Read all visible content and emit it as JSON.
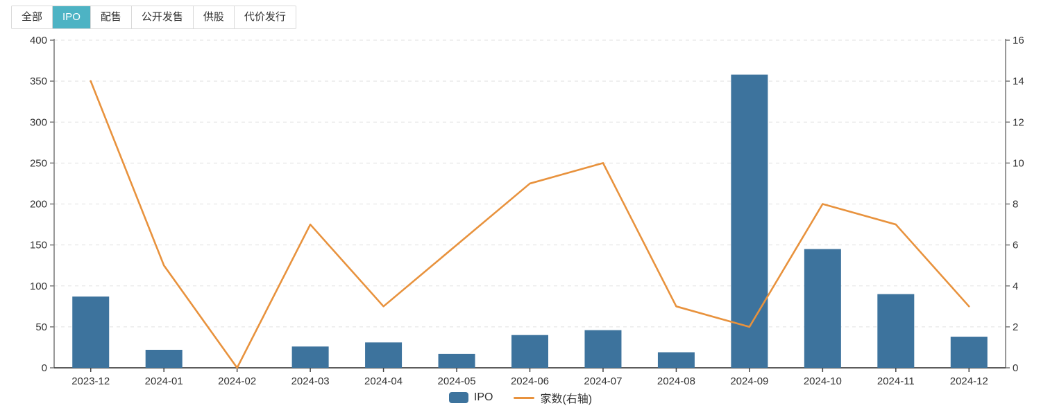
{
  "tabs": {
    "items": [
      {
        "label": "全部",
        "active": false
      },
      {
        "label": "IPO",
        "active": true
      },
      {
        "label": "配售",
        "active": false
      },
      {
        "label": "公开发售",
        "active": false
      },
      {
        "label": "供股",
        "active": false
      },
      {
        "label": "代价发行",
        "active": false
      }
    ],
    "active_bg": "#4db3c4"
  },
  "legend": {
    "items": [
      {
        "label": "IPO",
        "type": "bar",
        "color": "#3d739d"
      },
      {
        "label": "家数(右轴)",
        "type": "line",
        "color": "#e8923d"
      }
    ]
  },
  "chart_data": {
    "type": "bar",
    "subtype": "bar+line dual-axis",
    "categories": [
      "2023-12",
      "2024-01",
      "2024-02",
      "2024-03",
      "2024-04",
      "2024-05",
      "2024-06",
      "2024-07",
      "2024-08",
      "2024-09",
      "2024-10",
      "2024-11",
      "2024-12"
    ],
    "series": [
      {
        "name": "IPO",
        "type": "bar",
        "axis": "left",
        "color": "#3d739d",
        "values": [
          87,
          22,
          0,
          26,
          31,
          17,
          40,
          46,
          19,
          358,
          145,
          90,
          38
        ]
      },
      {
        "name": "家数(右轴)",
        "type": "line",
        "axis": "right",
        "color": "#e8923d",
        "values": [
          14,
          5,
          0,
          7,
          3,
          6,
          9,
          10,
          3,
          2,
          8,
          7,
          3
        ]
      }
    ],
    "left_axis": {
      "min": 0,
      "max": 400,
      "step": 50,
      "tick_labels": [
        "0",
        "50",
        "100",
        "150",
        "200",
        "250",
        "300",
        "350",
        "400"
      ]
    },
    "right_axis": {
      "min": 0,
      "max": 16,
      "step": 2,
      "tick_labels": [
        "0",
        "2",
        "4",
        "6",
        "8",
        "10",
        "12",
        "14",
        "16"
      ]
    },
    "grid": true,
    "gridline_style": "dashed",
    "legend_position": "bottom",
    "title": "",
    "xlabel": "",
    "ylabel": ""
  },
  "colors": {
    "bar": "#3d739d",
    "line": "#e8923d",
    "grid": "#e0e0e0",
    "axis_line": "#777777",
    "bottom_axis_line": "#444444",
    "tick_text": "#333333"
  }
}
